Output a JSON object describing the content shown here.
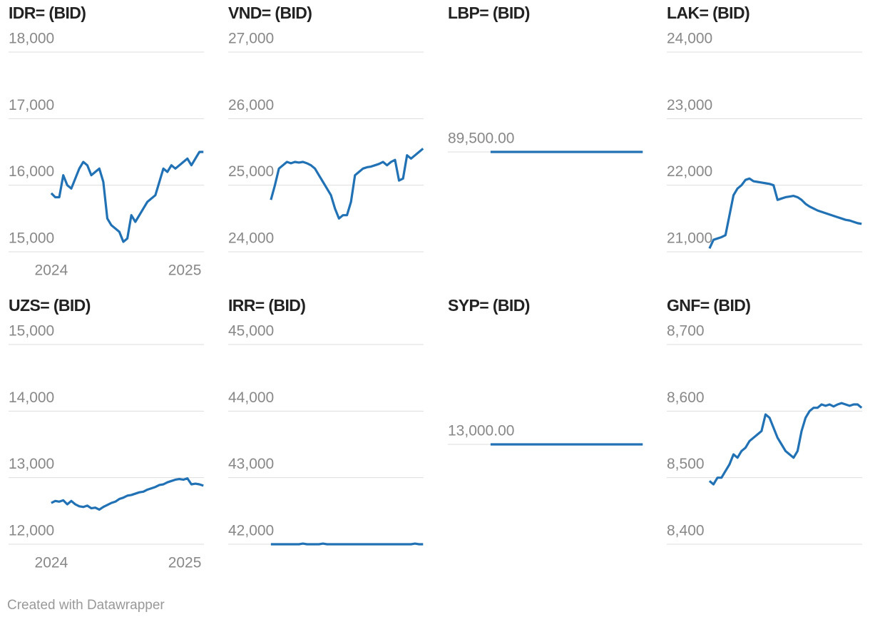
{
  "chart_data": [
    {
      "type": "line",
      "title": "IDR= (BID)",
      "grid": true,
      "x": [
        2024,
        2024.03,
        2024.06,
        2024.09,
        2024.12,
        2024.15,
        2024.18,
        2024.21,
        2024.24,
        2024.27,
        2024.3,
        2024.33,
        2024.36,
        2024.39,
        2024.42,
        2024.45,
        2024.48,
        2024.51,
        2024.54,
        2024.57,
        2024.6,
        2024.63,
        2024.66,
        2024.69,
        2024.72,
        2024.75,
        2024.78,
        2024.81,
        2024.84,
        2024.87,
        2024.9,
        2024.93,
        2024.96,
        2024.99,
        2025.02,
        2025.05,
        2025.08,
        2025.11,
        2025.14
      ],
      "series": [
        {
          "color": "#2171b5",
          "values": [
            15880,
            15820,
            15820,
            16150,
            16000,
            15950,
            16100,
            16250,
            16350,
            16300,
            16150,
            16200,
            16250,
            16050,
            15500,
            15400,
            15350,
            15300,
            15150,
            15200,
            15550,
            15450,
            15550,
            15650,
            15750,
            15800,
            15850,
            16050,
            16250,
            16200,
            16300,
            16250,
            16300,
            16350,
            16400,
            16300,
            16400,
            16500,
            16500
          ]
        }
      ],
      "xlim": [
        2023.68,
        2025.144
      ],
      "xticks": [
        2024,
        2025
      ],
      "ylim": [
        15000,
        18000
      ],
      "yticks": [
        {
          "value": 15000,
          "label": "15,000"
        },
        {
          "value": 16000,
          "label": "16,000"
        },
        {
          "value": 17000,
          "label": "17,000"
        },
        {
          "value": 18000,
          "label": "18,000"
        }
      ]
    },
    {
      "type": "line",
      "title": "VND= (BID)",
      "grid": true,
      "x": [
        2024,
        2024.03,
        2024.06,
        2024.09,
        2024.12,
        2024.15,
        2024.18,
        2024.21,
        2024.24,
        2024.27,
        2024.3,
        2024.33,
        2024.36,
        2024.39,
        2024.42,
        2024.45,
        2024.48,
        2024.51,
        2024.54,
        2024.57,
        2024.6,
        2024.63,
        2024.66,
        2024.69,
        2024.72,
        2024.75,
        2024.78,
        2024.81,
        2024.84,
        2024.87,
        2024.9,
        2024.93,
        2024.96,
        2024.99,
        2025.02,
        2025.05,
        2025.08,
        2025.11,
        2025.14
      ],
      "series": [
        {
          "color": "#2171b5",
          "values": [
            24780,
            25000,
            25250,
            25300,
            25350,
            25330,
            25350,
            25340,
            25350,
            25330,
            25300,
            25250,
            25150,
            25050,
            24950,
            24850,
            24650,
            24500,
            24550,
            24550,
            24750,
            25150,
            25200,
            25250,
            25270,
            25280,
            25300,
            25320,
            25350,
            25300,
            25350,
            25380,
            25070,
            25100,
            25450,
            25400,
            25450,
            25500,
            25550
          ]
        }
      ],
      "xlim": [
        2023.68,
        2025.144
      ],
      "ylim": [
        24000,
        27000
      ],
      "yticks": [
        {
          "value": 24000,
          "label": "24,000"
        },
        {
          "value": 25000,
          "label": "25,000"
        },
        {
          "value": 26000,
          "label": "26,000"
        },
        {
          "value": 27000,
          "label": "27,000"
        }
      ]
    },
    {
      "type": "line",
      "title": "LBP= (BID)",
      "grid": true,
      "x": [
        2024,
        2024.03,
        2024.06,
        2024.09,
        2024.12,
        2024.15,
        2024.18,
        2024.21,
        2024.24,
        2024.27,
        2024.3,
        2024.33,
        2024.36,
        2024.39,
        2024.42,
        2024.45,
        2024.48,
        2024.51,
        2024.54,
        2024.57,
        2024.6,
        2024.63,
        2024.66,
        2024.69,
        2024.72,
        2024.75,
        2024.78,
        2024.81,
        2024.84,
        2024.87,
        2024.9,
        2024.93,
        2024.96,
        2024.99,
        2025.02,
        2025.05,
        2025.08,
        2025.11,
        2025.14
      ],
      "series": [
        {
          "color": "#2171b5",
          "values": [
            89500,
            89500,
            89500,
            89500,
            89500,
            89500,
            89500,
            89500,
            89500,
            89500,
            89500,
            89500,
            89500,
            89500,
            89500,
            89500,
            89500,
            89500,
            89500,
            89500,
            89500,
            89500,
            89500,
            89500,
            89500,
            89500,
            89500,
            89500,
            89500,
            89500,
            89500,
            89500,
            89500,
            89500,
            89500,
            89500,
            89500,
            89500,
            89500
          ]
        }
      ],
      "xlim": [
        2023.68,
        2025.144
      ],
      "ylim": [
        89400,
        89600
      ],
      "yticks": [
        {
          "value": 89500,
          "label": "89,500.00"
        }
      ]
    },
    {
      "type": "line",
      "title": "LAK= (BID)",
      "grid": true,
      "x": [
        2024,
        2024.03,
        2024.06,
        2024.09,
        2024.12,
        2024.15,
        2024.18,
        2024.21,
        2024.24,
        2024.27,
        2024.3,
        2024.33,
        2024.36,
        2024.39,
        2024.42,
        2024.45,
        2024.48,
        2024.51,
        2024.54,
        2024.57,
        2024.6,
        2024.63,
        2024.66,
        2024.69,
        2024.72,
        2024.75,
        2024.78,
        2024.81,
        2024.84,
        2024.87,
        2024.9,
        2024.93,
        2024.96,
        2024.99,
        2025.02,
        2025.05,
        2025.08,
        2025.11,
        2025.14
      ],
      "series": [
        {
          "color": "#2171b5",
          "values": [
            21050,
            21180,
            21200,
            21220,
            21250,
            21550,
            21850,
            21950,
            22000,
            22080,
            22100,
            22060,
            22050,
            22040,
            22030,
            22020,
            22000,
            21780,
            21800,
            21820,
            21830,
            21840,
            21820,
            21780,
            21720,
            21680,
            21650,
            21620,
            21600,
            21580,
            21560,
            21540,
            21520,
            21500,
            21480,
            21470,
            21450,
            21430,
            21420
          ]
        }
      ],
      "xlim": [
        2023.68,
        2025.144
      ],
      "ylim": [
        21000,
        24000
      ],
      "yticks": [
        {
          "value": 21000,
          "label": "21,000"
        },
        {
          "value": 22000,
          "label": "22,000"
        },
        {
          "value": 23000,
          "label": "23,000"
        },
        {
          "value": 24000,
          "label": "24,000"
        }
      ]
    },
    {
      "type": "line",
      "title": "UZS= (BID)",
      "grid": true,
      "x": [
        2024,
        2024.03,
        2024.06,
        2024.09,
        2024.12,
        2024.15,
        2024.18,
        2024.21,
        2024.24,
        2024.27,
        2024.3,
        2024.33,
        2024.36,
        2024.39,
        2024.42,
        2024.45,
        2024.48,
        2024.51,
        2024.54,
        2024.57,
        2024.6,
        2024.63,
        2024.66,
        2024.69,
        2024.72,
        2024.75,
        2024.78,
        2024.81,
        2024.84,
        2024.87,
        2024.9,
        2024.93,
        2024.96,
        2024.99,
        2025.02,
        2025.05,
        2025.08,
        2025.11,
        2025.14
      ],
      "series": [
        {
          "color": "#2171b5",
          "values": [
            12620,
            12650,
            12640,
            12660,
            12600,
            12650,
            12600,
            12570,
            12560,
            12580,
            12540,
            12550,
            12520,
            12560,
            12590,
            12620,
            12640,
            12680,
            12700,
            12730,
            12740,
            12760,
            12780,
            12790,
            12820,
            12840,
            12860,
            12890,
            12900,
            12930,
            12950,
            12970,
            12980,
            12970,
            12990,
            12900,
            12910,
            12900,
            12880
          ]
        }
      ],
      "xlim": [
        2023.68,
        2025.144
      ],
      "xticks": [
        2024,
        2025
      ],
      "ylim": [
        12000,
        15000
      ],
      "yticks": [
        {
          "value": 12000,
          "label": "12,000"
        },
        {
          "value": 13000,
          "label": "13,000"
        },
        {
          "value": 14000,
          "label": "14,000"
        },
        {
          "value": 15000,
          "label": "15,000"
        }
      ]
    },
    {
      "type": "line",
      "title": "IRR= (BID)",
      "grid": true,
      "x": [
        2024,
        2024.03,
        2024.06,
        2024.09,
        2024.12,
        2024.15,
        2024.18,
        2024.21,
        2024.24,
        2024.27,
        2024.3,
        2024.33,
        2024.36,
        2024.39,
        2024.42,
        2024.45,
        2024.48,
        2024.51,
        2024.54,
        2024.57,
        2024.6,
        2024.63,
        2024.66,
        2024.69,
        2024.72,
        2024.75,
        2024.78,
        2024.81,
        2024.84,
        2024.87,
        2024.9,
        2024.93,
        2024.96,
        2024.99,
        2025.02,
        2025.05,
        2025.08,
        2025.11,
        2025.14
      ],
      "series": [
        {
          "color": "#2171b5",
          "values": [
            42000,
            42000,
            42000,
            42000,
            42000,
            42000,
            42000,
            42000,
            42010,
            42000,
            42000,
            42000,
            42000,
            42010,
            42000,
            42000,
            42000,
            42000,
            42000,
            42000,
            42000,
            42000,
            42000,
            42000,
            42000,
            42000,
            42000,
            42000,
            42000,
            42000,
            42000,
            42000,
            42000,
            42000,
            42000,
            42000,
            42010,
            42000,
            42000
          ]
        }
      ],
      "xlim": [
        2023.68,
        2025.144
      ],
      "ylim": [
        42000,
        45000
      ],
      "yticks": [
        {
          "value": 42000,
          "label": "42,000"
        },
        {
          "value": 43000,
          "label": "43,000"
        },
        {
          "value": 44000,
          "label": "44,000"
        },
        {
          "value": 45000,
          "label": "45,000"
        }
      ]
    },
    {
      "type": "line",
      "title": "SYP= (BID)",
      "grid": true,
      "x": [
        2024,
        2024.03,
        2024.06,
        2024.09,
        2024.12,
        2024.15,
        2024.18,
        2024.21,
        2024.24,
        2024.27,
        2024.3,
        2024.33,
        2024.36,
        2024.39,
        2024.42,
        2024.45,
        2024.48,
        2024.51,
        2024.54,
        2024.57,
        2024.6,
        2024.63,
        2024.66,
        2024.69,
        2024.72,
        2024.75,
        2024.78,
        2024.81,
        2024.84,
        2024.87,
        2024.9,
        2024.93,
        2024.96,
        2024.99,
        2025.02,
        2025.05,
        2025.08,
        2025.11,
        2025.14
      ],
      "series": [
        {
          "color": "#2171b5",
          "values": [
            13000,
            13000,
            13000,
            13000,
            13000,
            13000,
            13000,
            13000,
            13000,
            13000,
            13000,
            13000,
            13000,
            13000,
            13000,
            13000,
            13000,
            13000,
            13000,
            13000,
            13000,
            13000,
            13000,
            13000,
            13000,
            13000,
            13000,
            13000,
            13000,
            13000,
            13000,
            13000,
            13000,
            13000,
            13000,
            13000,
            13000,
            13000,
            13000
          ]
        }
      ],
      "xlim": [
        2023.68,
        2025.144
      ],
      "ylim": [
        12900,
        13100
      ],
      "yticks": [
        {
          "value": 13000,
          "label": "13,000.00"
        }
      ]
    },
    {
      "type": "line",
      "title": "GNF= (BID)",
      "grid": true,
      "x": [
        2024,
        2024.03,
        2024.06,
        2024.09,
        2024.12,
        2024.15,
        2024.18,
        2024.21,
        2024.24,
        2024.27,
        2024.3,
        2024.33,
        2024.36,
        2024.39,
        2024.42,
        2024.45,
        2024.48,
        2024.51,
        2024.54,
        2024.57,
        2024.6,
        2024.63,
        2024.66,
        2024.69,
        2024.72,
        2024.75,
        2024.78,
        2024.81,
        2024.84,
        2024.87,
        2024.9,
        2024.93,
        2024.96,
        2024.99,
        2025.02,
        2025.05,
        2025.08,
        2025.11,
        2025.14
      ],
      "series": [
        {
          "color": "#2171b5",
          "values": [
            8495,
            8490,
            8500,
            8500,
            8510,
            8520,
            8535,
            8530,
            8540,
            8545,
            8555,
            8560,
            8565,
            8570,
            8595,
            8590,
            8575,
            8560,
            8550,
            8540,
            8535,
            8530,
            8540,
            8570,
            8590,
            8600,
            8605,
            8605,
            8610,
            8608,
            8610,
            8607,
            8610,
            8612,
            8610,
            8608,
            8610,
            8610,
            8605
          ]
        }
      ],
      "xlim": [
        2023.68,
        2025.144
      ],
      "ylim": [
        8400,
        8700
      ],
      "yticks": [
        {
          "value": 8400,
          "label": "8,400"
        },
        {
          "value": 8500,
          "label": "8,500"
        },
        {
          "value": 8600,
          "label": "8,600"
        },
        {
          "value": 8700,
          "label": "8,700"
        }
      ]
    }
  ],
  "credit": "Created with Datawrapper"
}
